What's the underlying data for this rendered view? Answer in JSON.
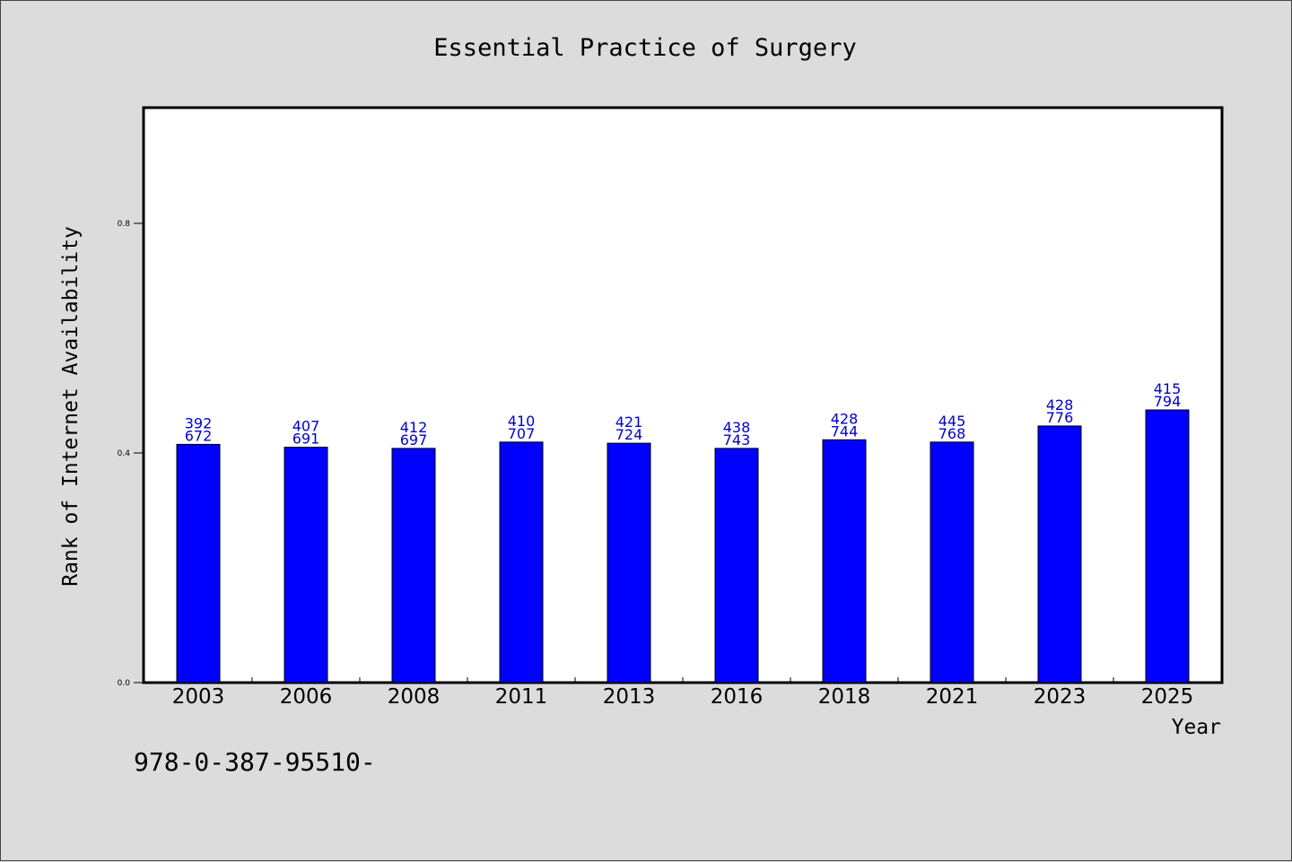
{
  "chart_data": {
    "type": "bar",
    "title": "Essential Practice of Surgery",
    "xlabel": "Year",
    "ylabel": "Rank of Internet Availability",
    "categories": [
      "2003",
      "2006",
      "2008",
      "2011",
      "2013",
      "2016",
      "2018",
      "2021",
      "2023",
      "2025"
    ],
    "values": [
      0.415,
      0.41,
      0.408,
      0.419,
      0.417,
      0.408,
      0.423,
      0.419,
      0.447,
      0.475
    ],
    "bar_labels": [
      [
        "392",
        "672"
      ],
      [
        "407",
        "691"
      ],
      [
        "412",
        "697"
      ],
      [
        "410",
        "707"
      ],
      [
        "421",
        "724"
      ],
      [
        "438",
        "743"
      ],
      [
        "428",
        "744"
      ],
      [
        "445",
        "768"
      ],
      [
        "428",
        "776"
      ],
      [
        "415",
        "794"
      ]
    ],
    "ylim": [
      0,
      1.0
    ],
    "yticks": [
      0.0,
      0.4,
      0.8
    ],
    "ytick_labels": [
      "0.0",
      "0.4",
      "0.8"
    ],
    "grid": false,
    "colors": {
      "bar": "#0000ff",
      "bar_label": "#0000cc",
      "plot_bg": "#ffffff",
      "page_bg": "#dcdcdc"
    }
  },
  "footer": {
    "text": "978-0-387-95510-"
  }
}
